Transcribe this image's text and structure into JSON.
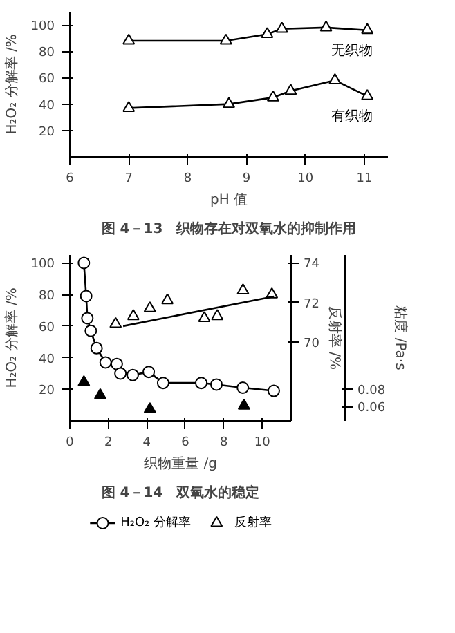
{
  "chart_data": [
    {
      "type": "line",
      "title": "图 4－13　织物存在对双氧水的抑制作用",
      "xlabel": "pH 值",
      "ylabel": "H₂O₂ 分解率 /%",
      "xlim": [
        6,
        11.4
      ],
      "xticks": [
        6,
        7,
        8,
        9,
        10,
        11
      ],
      "ylim": [
        0,
        110
      ],
      "yticks": [
        20,
        40,
        60,
        80,
        100
      ],
      "marker": "triangle",
      "legend": false,
      "grid": false,
      "series": [
        {
          "name": "无织物",
          "color": "#000000",
          "x": [
            7,
            8.65,
            9.35,
            9.6,
            10.35,
            11.05
          ],
          "values": [
            88,
            88,
            93,
            97,
            98,
            96
          ]
        },
        {
          "name": "有织物",
          "color": "#000000",
          "x": [
            7,
            8.7,
            9.45,
            9.75,
            10.5,
            11.05
          ],
          "values": [
            37,
            40,
            45,
            50,
            58,
            46
          ]
        }
      ]
    },
    {
      "type": "line",
      "title": "图 4－14　双氧水的稳定",
      "xlabel": "织物重量 /g",
      "ylabel": "H₂O₂ 分解率 /%",
      "y2label": "反射率 /%",
      "y3label": "粘度 /Pa·s",
      "xlim": [
        0,
        11.5
      ],
      "xticks": [
        0,
        2,
        4,
        6,
        8,
        10
      ],
      "ylim": [
        0,
        105
      ],
      "yticks": [
        20,
        40,
        60,
        80,
        100
      ],
      "y2lim": [
        66,
        74.4
      ],
      "y2ticks": [
        70,
        72,
        74
      ],
      "y3lim": [
        0.0436,
        0.2345
      ],
      "y3ticks": [
        0.06,
        0.08
      ],
      "legend": "bottom",
      "grid": false,
      "series": [
        {
          "name": "H₂O₂ 分解率",
          "color": "#000000",
          "marker": "circle",
          "x": [
            0.73,
            0.85,
            0.91,
            1.09,
            1.39,
            1.86,
            2.44,
            2.63,
            3.27,
            4.1,
            4.85,
            6.83,
            7.62,
            8.99,
            10.6
          ],
          "values": [
            100,
            79,
            65,
            57,
            46,
            37,
            36,
            30,
            29,
            31,
            24,
            24,
            23,
            21,
            19
          ]
        },
        {
          "name": "反射率",
          "type": "scatter",
          "color": "#000000",
          "marker": "triangle",
          "axis": "y2",
          "x": [
            2.38,
            3.3,
            4.16,
            5.07,
            6.99,
            7.66,
            9.0,
            10.5
          ],
          "values": [
            70.9,
            71.3,
            71.7,
            72.1,
            71.2,
            71.3,
            72.6,
            72.4
          ]
        },
        {
          "type": "line",
          "color": "#000000",
          "marker": "none",
          "axis": "y2",
          "x": [
            2.77,
            10.6
          ],
          "values": [
            70.8,
            72.3
          ]
        },
        {
          "type": "scatter",
          "color": "#000000",
          "marker": "triangle",
          "axis": "y3",
          "x": [
            0.73,
            1.58,
            4.16,
            9.05
          ],
          "values": [
            0.088,
            0.073,
            0.057,
            0.061
          ]
        }
      ]
    }
  ]
}
